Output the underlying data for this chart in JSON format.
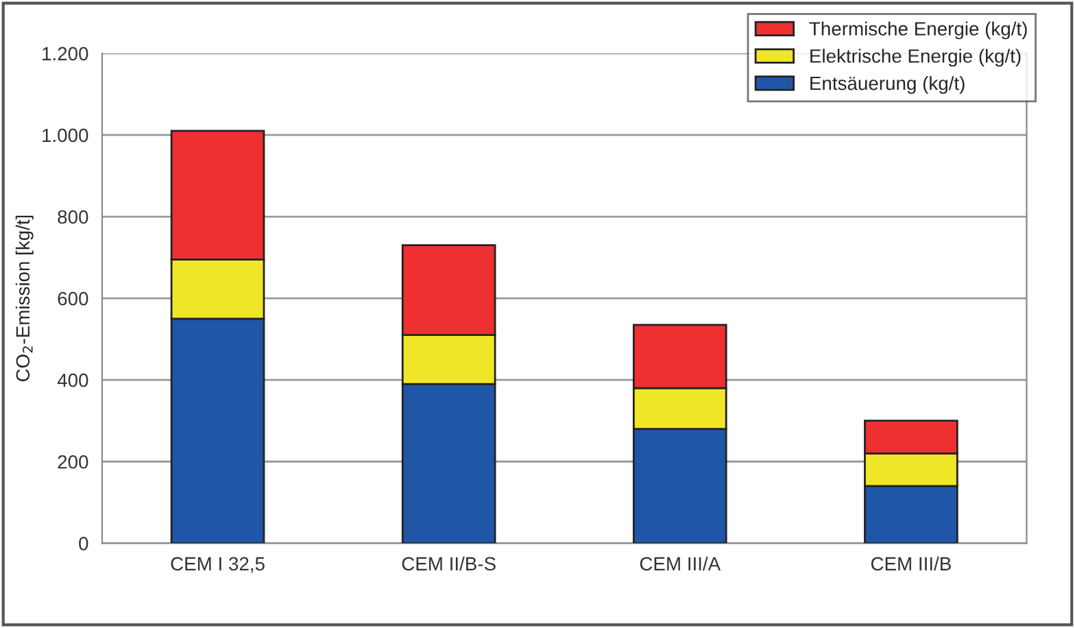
{
  "chart_data": {
    "type": "bar",
    "stacked": true,
    "ylabel": "CO$_{2}$-Emission [kg/t]",
    "categories": [
      "CEM I 32,5",
      "CEM II/B-S",
      "CEM III/A",
      "CEM III/B"
    ],
    "series": [
      {
        "name": "Entsäuerung (kg/t)",
        "color": "#1f56a8",
        "values": [
          550,
          390,
          280,
          140
        ]
      },
      {
        "name": "Elektrische Energie (kg/t)",
        "color": "#f0e628",
        "values": [
          145,
          120,
          100,
          80
        ]
      },
      {
        "name": "Thermische Energie (kg/t)",
        "color": "#ee3030",
        "values": [
          315,
          220,
          155,
          80
        ]
      }
    ],
    "ylim": [
      0,
      1200
    ],
    "yticks": [
      0,
      200,
      400,
      600,
      800,
      {
        "value": 1000,
        "label": "1.000"
      },
      {
        "value": 1200,
        "label": "1.200"
      }
    ],
    "grid": "y",
    "legend": "top right"
  }
}
